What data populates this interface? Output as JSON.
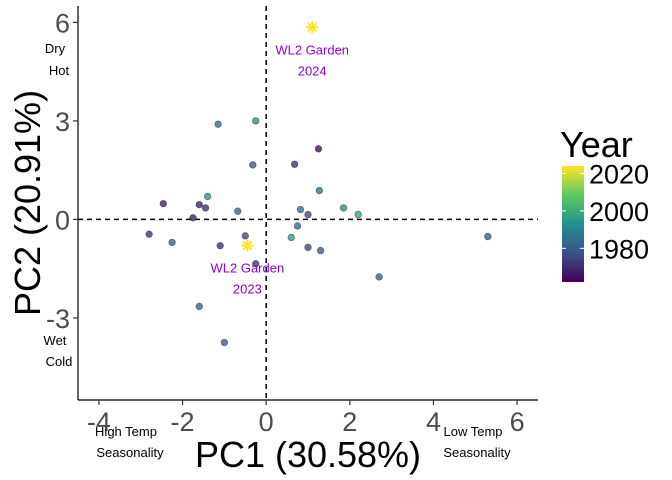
{
  "chart_data": {
    "type": "scatter",
    "xlabel": "PC1 (30.58%)",
    "ylabel": "PC2 (20.91%)",
    "xlim": [
      -4.5,
      6.5
    ],
    "ylim": [
      -5.5,
      6.5
    ],
    "x_ticks": [
      -4,
      -2,
      0,
      2,
      4,
      6
    ],
    "y_ticks": [
      -3,
      0,
      3,
      6
    ],
    "reference_lines": {
      "x": 0,
      "y": 0,
      "style": "dashed"
    },
    "grid": false,
    "legend": {
      "title": "Year",
      "type": "colorbar",
      "placement": "right",
      "ticks": [
        1980,
        2000,
        2020
      ],
      "range": [
        1962,
        2024
      ],
      "colormap": "viridis"
    },
    "colors": {
      "colorbar_stops": [
        "#440154",
        "#3b528b",
        "#21918c",
        "#5ec962",
        "#fde725"
      ],
      "annotation": "#9400d3",
      "star": "#fde725"
    },
    "corner_notes": {
      "top_left": [
        "Dry",
        "Hot"
      ],
      "bottom_left_y": [
        "Wet",
        "Cold"
      ],
      "bottom_left_x": [
        "High Temp",
        "Seasonality"
      ],
      "bottom_right_x": [
        "Low Temp",
        "Seasonality"
      ]
    },
    "points": [
      {
        "x": 1.25,
        "y": 2.15,
        "year": 1964
      },
      {
        "x": 0.68,
        "y": 1.68,
        "year": 1970
      },
      {
        "x": -0.32,
        "y": 1.66,
        "year": 1978
      },
      {
        "x": -1.15,
        "y": 2.9,
        "year": 1984
      },
      {
        "x": -0.25,
        "y": 3.0,
        "year": 1992
      },
      {
        "x": 1.27,
        "y": 0.88,
        "year": 1986
      },
      {
        "x": -1.4,
        "y": 0.7,
        "year": 1993
      },
      {
        "x": -1.6,
        "y": 0.45,
        "year": 1968
      },
      {
        "x": -1.45,
        "y": 0.35,
        "year": 1970
      },
      {
        "x": -2.46,
        "y": 0.48,
        "year": 1966
      },
      {
        "x": -1.75,
        "y": 0.05,
        "year": 1967
      },
      {
        "x": -0.68,
        "y": 0.25,
        "year": 1982
      },
      {
        "x": 0.82,
        "y": 0.3,
        "year": 1985
      },
      {
        "x": 1.0,
        "y": 0.15,
        "year": 1975
      },
      {
        "x": 1.85,
        "y": 0.35,
        "year": 1993
      },
      {
        "x": 2.2,
        "y": 0.15,
        "year": 1998
      },
      {
        "x": 0.75,
        "y": -0.2,
        "year": 1983
      },
      {
        "x": 0.6,
        "y": -0.55,
        "year": 1995
      },
      {
        "x": -0.5,
        "y": -0.5,
        "year": 1975
      },
      {
        "x": -1.1,
        "y": -0.8,
        "year": 1970
      },
      {
        "x": -2.8,
        "y": -0.45,
        "year": 1971
      },
      {
        "x": -2.25,
        "y": -0.7,
        "year": 1982
      },
      {
        "x": 1.0,
        "y": -0.85,
        "year": 1975
      },
      {
        "x": 1.3,
        "y": -0.95,
        "year": 1980
      },
      {
        "x": -0.25,
        "y": -1.35,
        "year": 1970
      },
      {
        "x": 2.7,
        "y": -1.75,
        "year": 1982
      },
      {
        "x": 5.3,
        "y": -0.52,
        "year": 1980
      },
      {
        "x": -1.6,
        "y": -2.65,
        "year": 1982
      },
      {
        "x": -1.0,
        "y": -3.75,
        "year": 1980
      }
    ],
    "highlights": [
      {
        "label": "WL2 Garden",
        "year_label": "2024",
        "x": 1.1,
        "y": 5.85,
        "year": 2024
      },
      {
        "label": "WL2 Garden",
        "year_label": "2023",
        "x": -0.45,
        "y": -0.8,
        "year": 2023
      }
    ]
  }
}
